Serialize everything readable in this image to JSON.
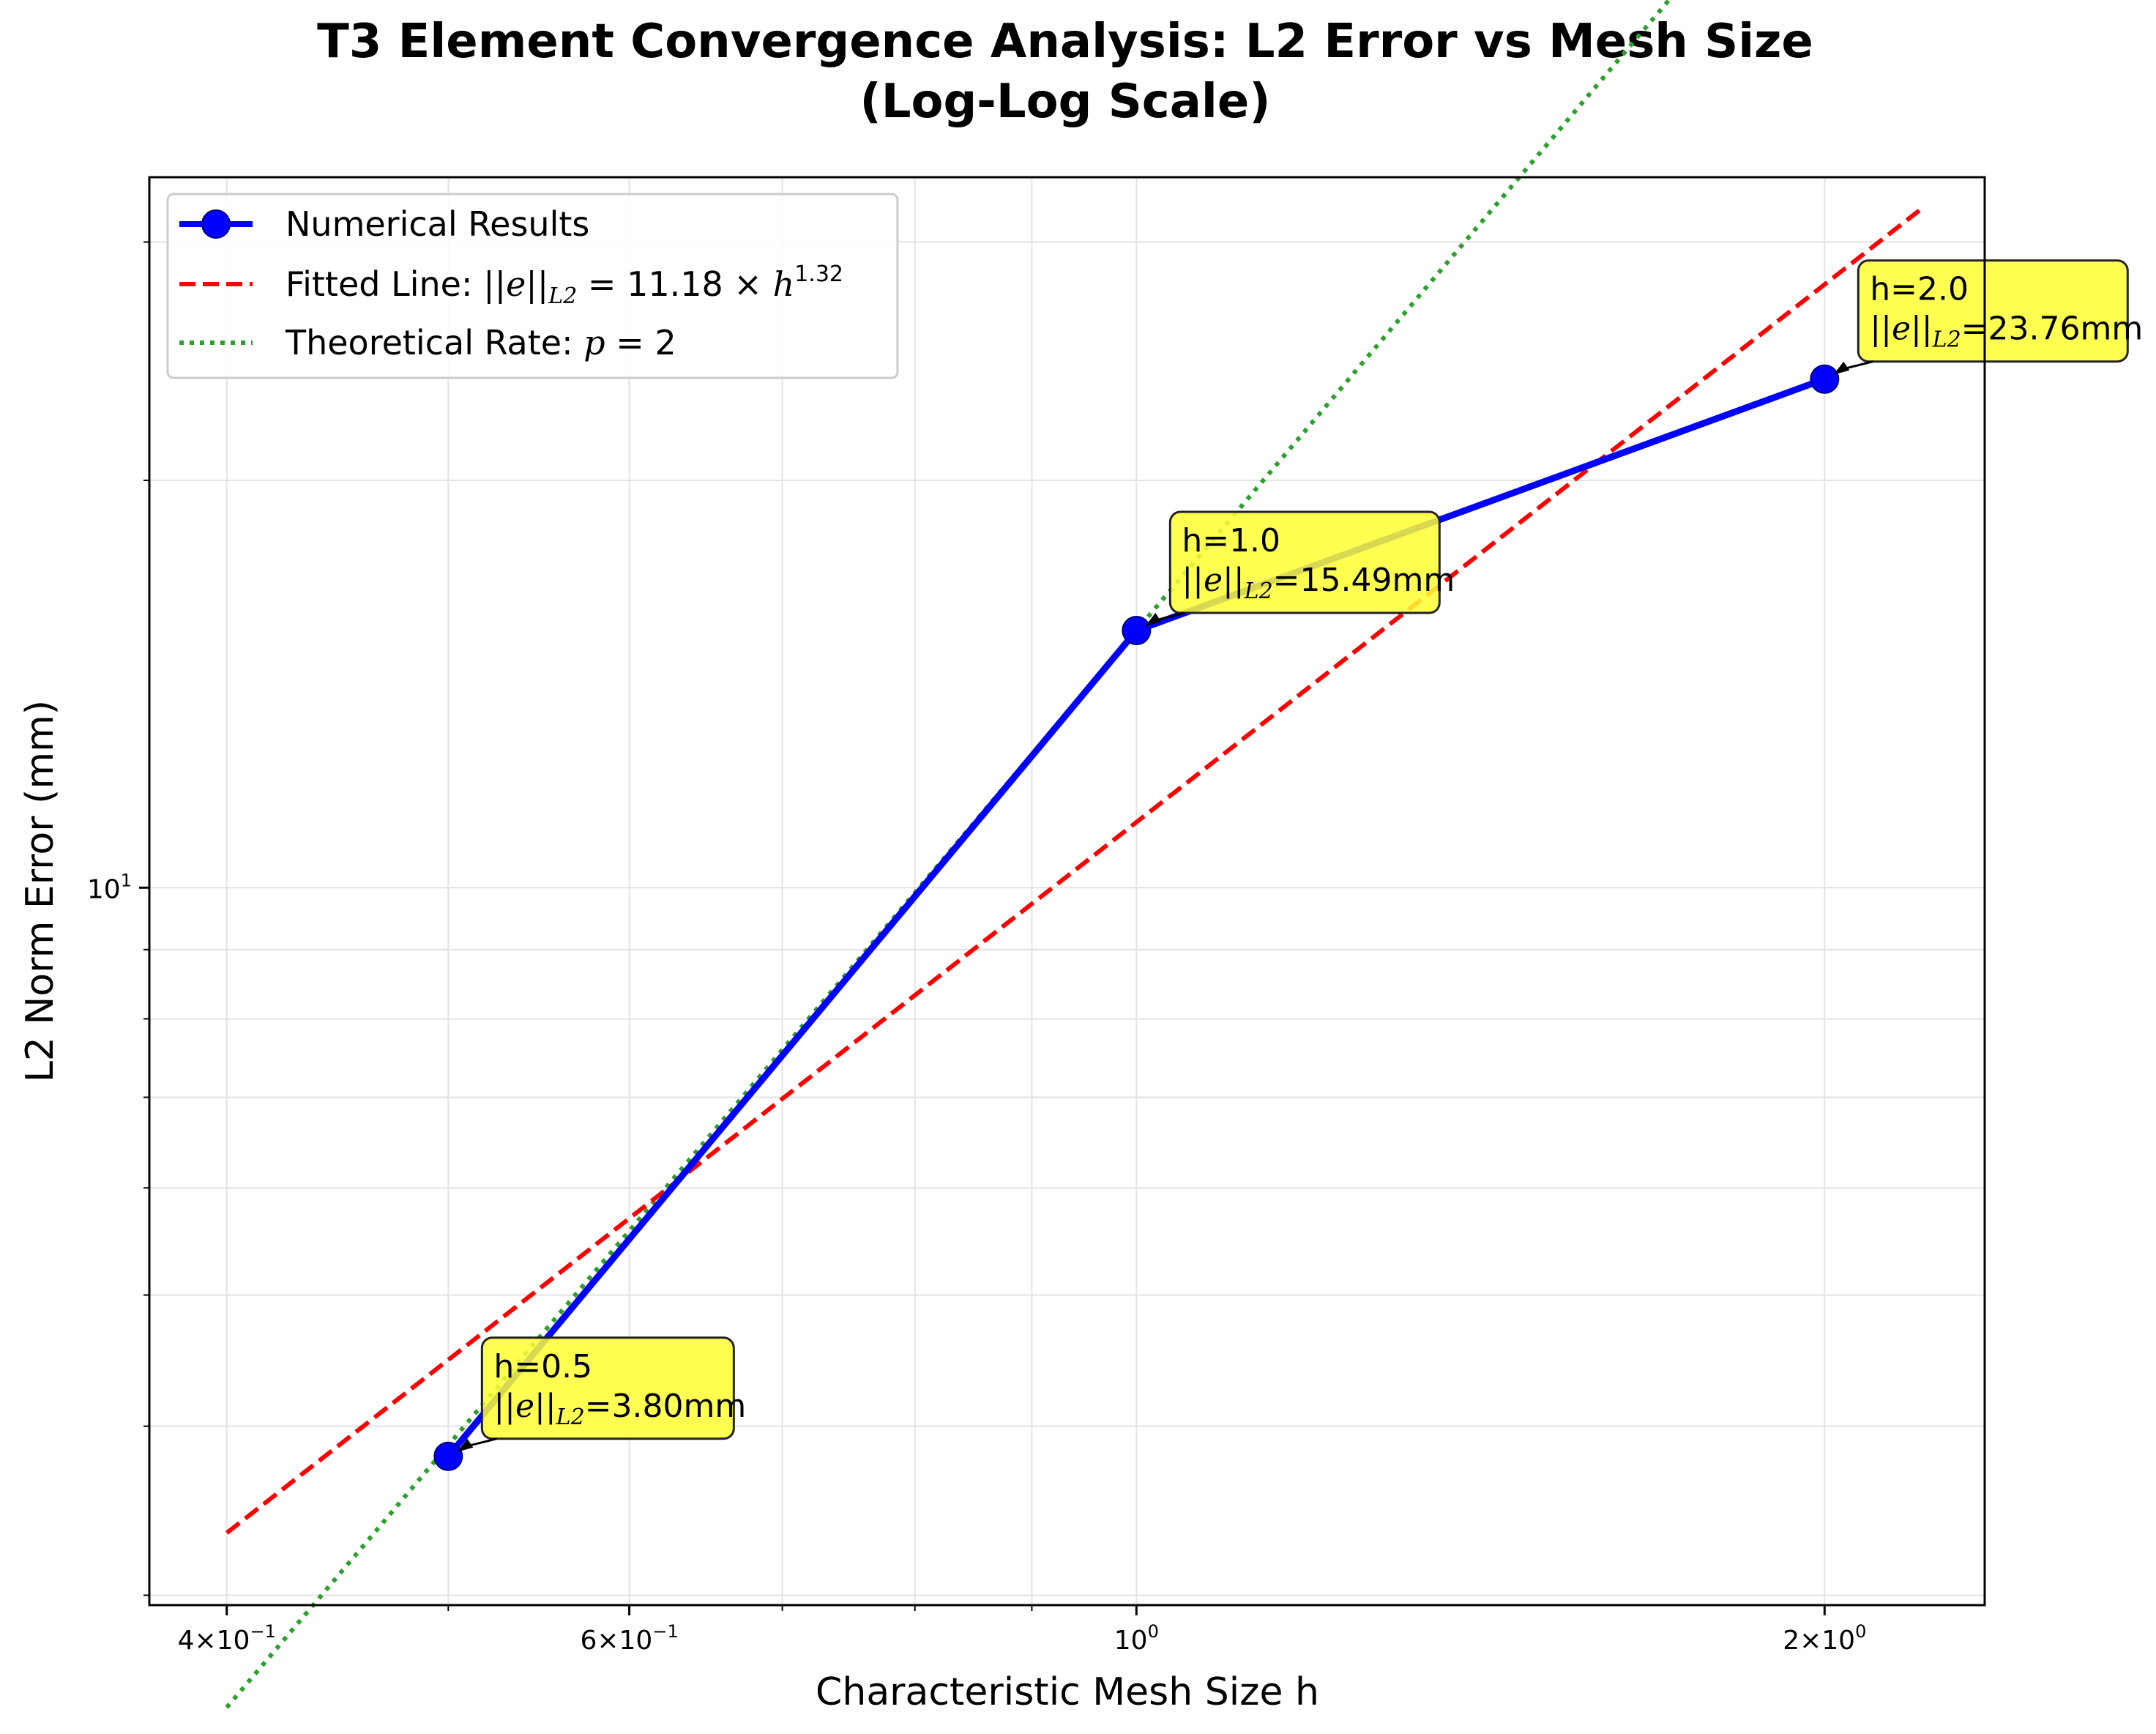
{
  "chart_data": {
    "type": "line",
    "title": "T3 Element Convergence Analysis: L2 Error vs Mesh Size",
    "subtitle": "(Log-Log Scale)",
    "xlabel": "Characteristic Mesh Size h",
    "ylabel": "L2 Norm Error (mm)",
    "xscale": "log",
    "yscale": "log",
    "xlim": [
      0.37,
      2.35
    ],
    "ylim": [
      2.95,
      33.5
    ],
    "grid": true,
    "legend_position": "top-left",
    "x_ticks": [
      {
        "value": 0.4,
        "mantissa": "4",
        "exponent": "−1"
      },
      {
        "value": 0.6,
        "mantissa": "6",
        "exponent": "−1"
      },
      {
        "value": 1.0,
        "mantissa": "",
        "exponent": "0"
      },
      {
        "value": 2.0,
        "mantissa": "2",
        "exponent": "0"
      }
    ],
    "y_ticks": [
      {
        "value": 10,
        "mantissa": "",
        "exponent": "1"
      }
    ],
    "series": [
      {
        "name": "Numerical Results",
        "style": "solid-marker",
        "color": "#0000ff",
        "x": [
          0.5,
          1.0,
          2.0
        ],
        "y": [
          3.8,
          15.49,
          23.76
        ]
      },
      {
        "name": "Fitted Line",
        "legend_prefix": "Fitted Line: ",
        "legend_math": "||e||",
        "legend_math_sub": "L2",
        "legend_math_tail": " = 11.18 × ",
        "legend_math_var": "h",
        "legend_math_exp": "1.32",
        "style": "dashed",
        "color": "#ff0000",
        "coefficient": 11.18,
        "exponent": 1.32,
        "x_range": [
          0.4,
          2.2
        ]
      },
      {
        "name": "Theoretical Rate",
        "legend_prefix": "Theoretical Rate: ",
        "legend_math_var": "p",
        "legend_math_tail": " = 2",
        "style": "dotted",
        "color": "#2ca02c",
        "coefficient": 15.49,
        "exponent": 2,
        "x_range": [
          0.4,
          2.2
        ]
      }
    ],
    "annotations": [
      {
        "x": 0.5,
        "y": 3.8,
        "line1": "h=0.5",
        "norm": "||e||",
        "sub": "L2",
        "value": "=3.80mm"
      },
      {
        "x": 1.0,
        "y": 15.49,
        "line1": "h=1.0",
        "norm": "||e||",
        "sub": "L2",
        "value": "=15.49mm"
      },
      {
        "x": 2.0,
        "y": 23.76,
        "line1": "h=2.0",
        "norm": "||e||",
        "sub": "L2",
        "value": "=23.76mm"
      }
    ],
    "annotation_box_color": "#ffff33"
  }
}
